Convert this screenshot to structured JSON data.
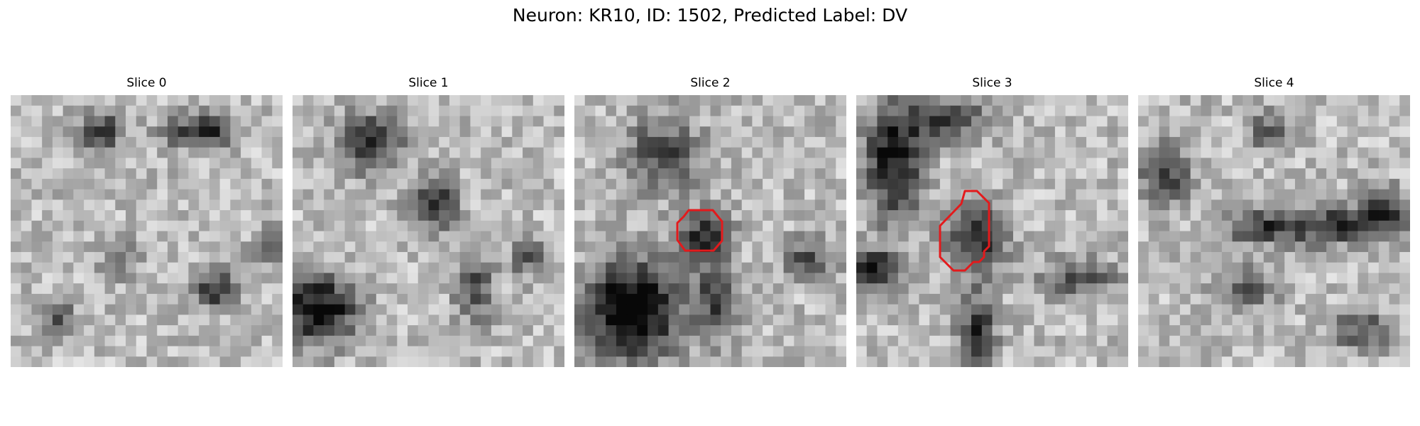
{
  "figure": {
    "title": "Neuron: KR10, ID: 1502, Predicted Label: DV"
  },
  "colors": {
    "outline": "#e31a1c",
    "background": "#ffffff"
  },
  "slices": [
    {
      "title": "Slice 0",
      "has_outline": false
    },
    {
      "title": "Slice 1",
      "has_outline": false
    },
    {
      "title": "Slice 2",
      "has_outline": true
    },
    {
      "title": "Slice 3",
      "has_outline": true
    },
    {
      "title": "Slice 4",
      "has_outline": false
    }
  ]
}
